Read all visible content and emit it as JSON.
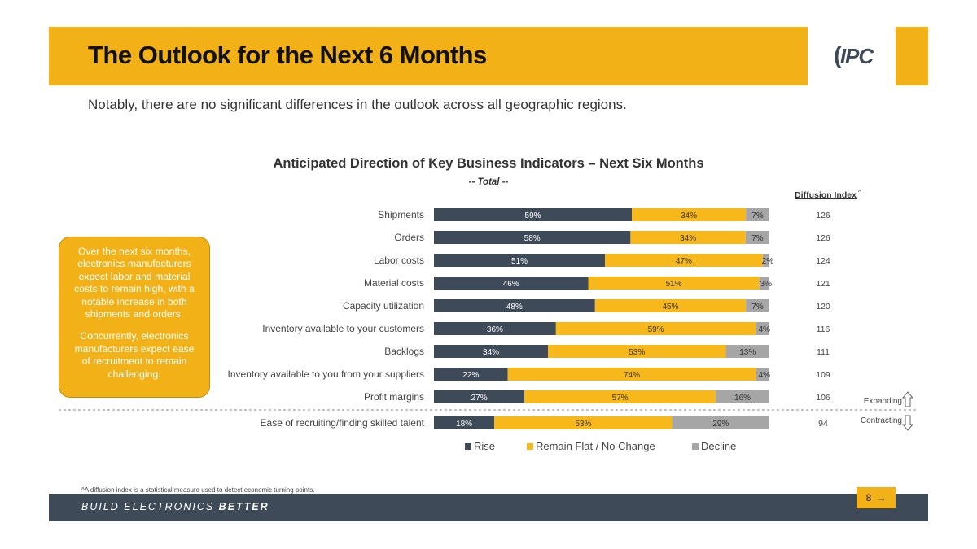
{
  "page": {
    "title": "The Outlook for the Next 6 Months",
    "subtitle": "Notably, there are no significant differences in the outlook across all geographic regions.",
    "logo_text": "IPC",
    "callout_paragraphs": [
      "Over the next six months, electronics manufacturers expect labor and material costs to remain high, with a notable increase in both shipments and orders.",
      "Concurrently, electronics manufacturers expect ease of recruitment to remain challenging."
    ],
    "footnote": "^A diffusion index is a statistical measure used to detect economic turning points.",
    "footer_prefix": "BUILD ELECTRONICS ",
    "footer_bold": "BETTER",
    "page_number": "8",
    "page_arrow": "→"
  },
  "chart_data": {
    "type": "bar",
    "orientation": "horizontal",
    "stacked": true,
    "percent_scale": true,
    "title": "Anticipated Direction of Key Business Indicators – Next Six Months",
    "subtitle": "-- Total --",
    "categories": [
      "Shipments",
      "Orders",
      "Labor costs",
      "Material costs",
      "Capacity utilization",
      "Inventory available to your customers",
      "Backlogs",
      "Inventory available to you from your suppliers",
      "Profit margins",
      "Ease of recruiting/finding skilled talent"
    ],
    "series": [
      {
        "name": "Rise",
        "color": "#3e4a57",
        "label_color": "#ffffff",
        "values": [
          59,
          58,
          51,
          46,
          48,
          36,
          34,
          22,
          27,
          18
        ]
      },
      {
        "name": "Remain Flat / No Change",
        "color": "#f6b81b",
        "label_color": "#333333",
        "values": [
          34,
          34,
          47,
          51,
          45,
          59,
          53,
          74,
          57,
          53
        ]
      },
      {
        "name": "Decline",
        "color": "#a6a6a6",
        "label_color": "#333333",
        "values": [
          7,
          7,
          2,
          3,
          7,
          4,
          13,
          4,
          16,
          29
        ]
      }
    ],
    "diffusion_index": {
      "header": "Diffusion Index",
      "header_mark": "^",
      "values": [
        126,
        126,
        124,
        121,
        120,
        116,
        111,
        109,
        106,
        94
      ]
    },
    "divider_after_category": "Profit margins",
    "expanding_label": "Expanding",
    "contracting_label": "Contracting",
    "legend_position": "bottom",
    "grid": false
  }
}
